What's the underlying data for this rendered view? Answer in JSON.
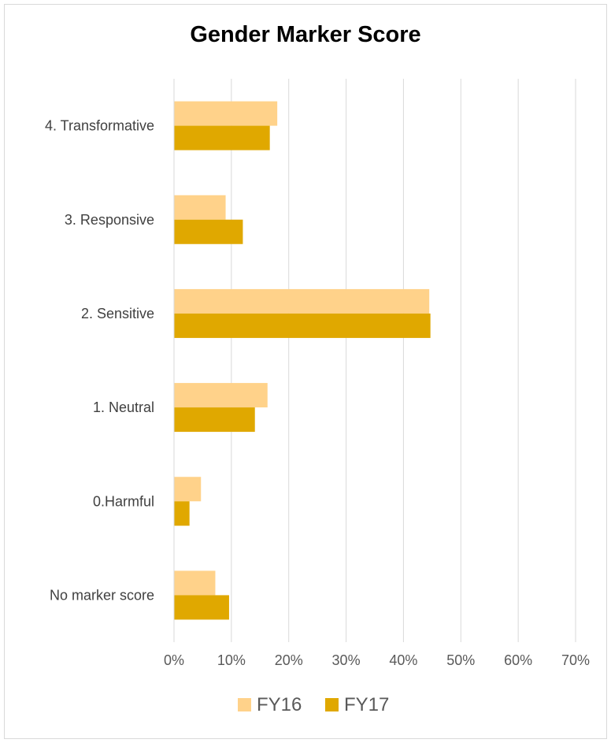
{
  "chart_data": {
    "type": "bar",
    "orientation": "horizontal",
    "title": "Gender Marker Score",
    "categories": [
      "4. Transformative",
      "3. Responsive",
      "2. Sensitive",
      "1. Neutral",
      "0.Harmful",
      "No marker score"
    ],
    "series": [
      {
        "name": "FY16",
        "color": "#ffd28a",
        "values": [
          18,
          9,
          44.5,
          16.3,
          4.7,
          7.2
        ]
      },
      {
        "name": "FY17",
        "color": "#e0a800",
        "values": [
          16.7,
          12,
          44.7,
          14.1,
          2.7,
          9.6
        ]
      }
    ],
    "xlim": [
      0,
      70
    ],
    "xticks": [
      "0%",
      "10%",
      "20%",
      "30%",
      "40%",
      "50%",
      "60%",
      "70%"
    ],
    "grid": true,
    "legend_position": "bottom"
  }
}
